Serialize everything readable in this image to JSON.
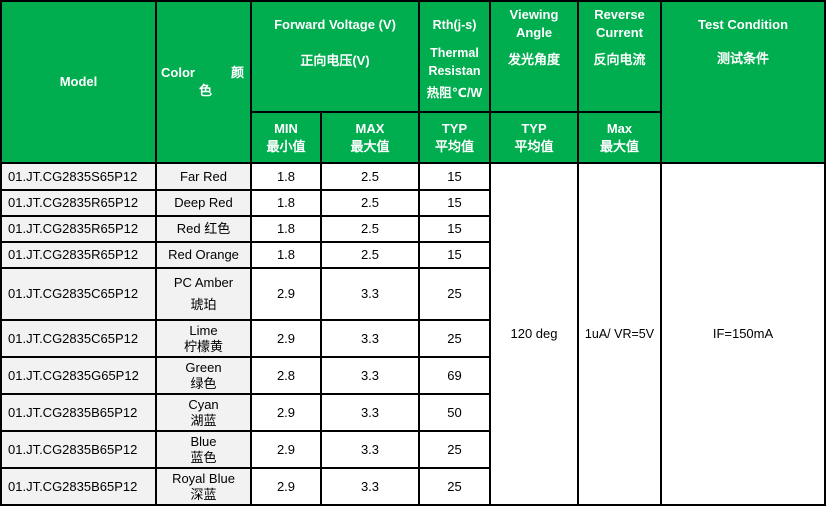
{
  "header": {
    "model": "Model",
    "color_en": "Color",
    "color_cn_1": "颜",
    "color_cn_2": "色",
    "forward_voltage_en": "Forward Voltage (V)",
    "forward_voltage_cn": "正向电压(V)",
    "rth_en_1": "Rth(j-s)",
    "rth_en_2": "Thermal Resistan",
    "rth_cn": "热阻℃/W",
    "viewing_angle_en": "Viewing Angle",
    "viewing_angle_cn": "发光角度",
    "reverse_current_en": "Reverse Current",
    "reverse_current_cn": "反向电流",
    "test_condition_en": "Test Condition",
    "test_condition_cn": "测试条件",
    "sub": [
      {
        "en": "MIN",
        "cn": "最小值"
      },
      {
        "en": "MAX",
        "cn": "最大值"
      },
      {
        "en": "TYP",
        "cn": "平均值"
      },
      {
        "en": "TYP",
        "cn": "平均值"
      },
      {
        "en": "Max",
        "cn": "最大值"
      }
    ]
  },
  "shared": {
    "viewing_angle": "120 deg",
    "reverse_current": "1uA/ VR=5V",
    "test_condition": "IF=150mA"
  },
  "rows": [
    {
      "model": "01.JT.CG2835S65P12",
      "color_en": "Far Red",
      "color_cn": "",
      "min": "1.8",
      "max": "2.5",
      "rth": "15"
    },
    {
      "model": "01.JT.CG2835R65P12",
      "color_en": "Deep Red",
      "color_cn": "",
      "min": "1.8",
      "max": "2.5",
      "rth": "15"
    },
    {
      "model": "01.JT.CG2835R65P12",
      "color_en": "Red 红色",
      "color_cn": "",
      "min": "1.8",
      "max": "2.5",
      "rth": "15"
    },
    {
      "model": "01.JT.CG2835R65P12",
      "color_en": "Red Orange",
      "color_cn": "",
      "min": "1.8",
      "max": "2.5",
      "rth": "15"
    },
    {
      "model": "01.JT.CG2835C65P12",
      "color_en": "PC Amber",
      "color_cn": "琥珀",
      "min": "2.9",
      "max": "3.3",
      "rth": "25"
    },
    {
      "model": "01.JT.CG2835C65P12",
      "color_en": "Lime",
      "color_cn": "柠檬黄",
      "min": "2.9",
      "max": "3.3",
      "rth": "25"
    },
    {
      "model": "01.JT.CG2835G65P12",
      "color_en": "Green",
      "color_cn": "绿色",
      "min": "2.8",
      "max": "3.3",
      "rth": "69"
    },
    {
      "model": "01.JT.CG2835B65P12",
      "color_en": "Cyan",
      "color_cn": "湖蓝",
      "min": "2.9",
      "max": "3.3",
      "rth": "50"
    },
    {
      "model": "01.JT.CG2835B65P12",
      "color_en": "Blue",
      "color_cn": "蓝色",
      "min": "2.9",
      "max": "3.3",
      "rth": "25"
    },
    {
      "model": "01.JT.CG2835B65P12",
      "color_en": "Royal Blue",
      "color_cn": "深蓝",
      "min": "2.9",
      "max": "3.3",
      "rth": "25"
    }
  ],
  "colors": {
    "header_bg": "#00ad4f",
    "label_bg": "#f2f2f2"
  }
}
